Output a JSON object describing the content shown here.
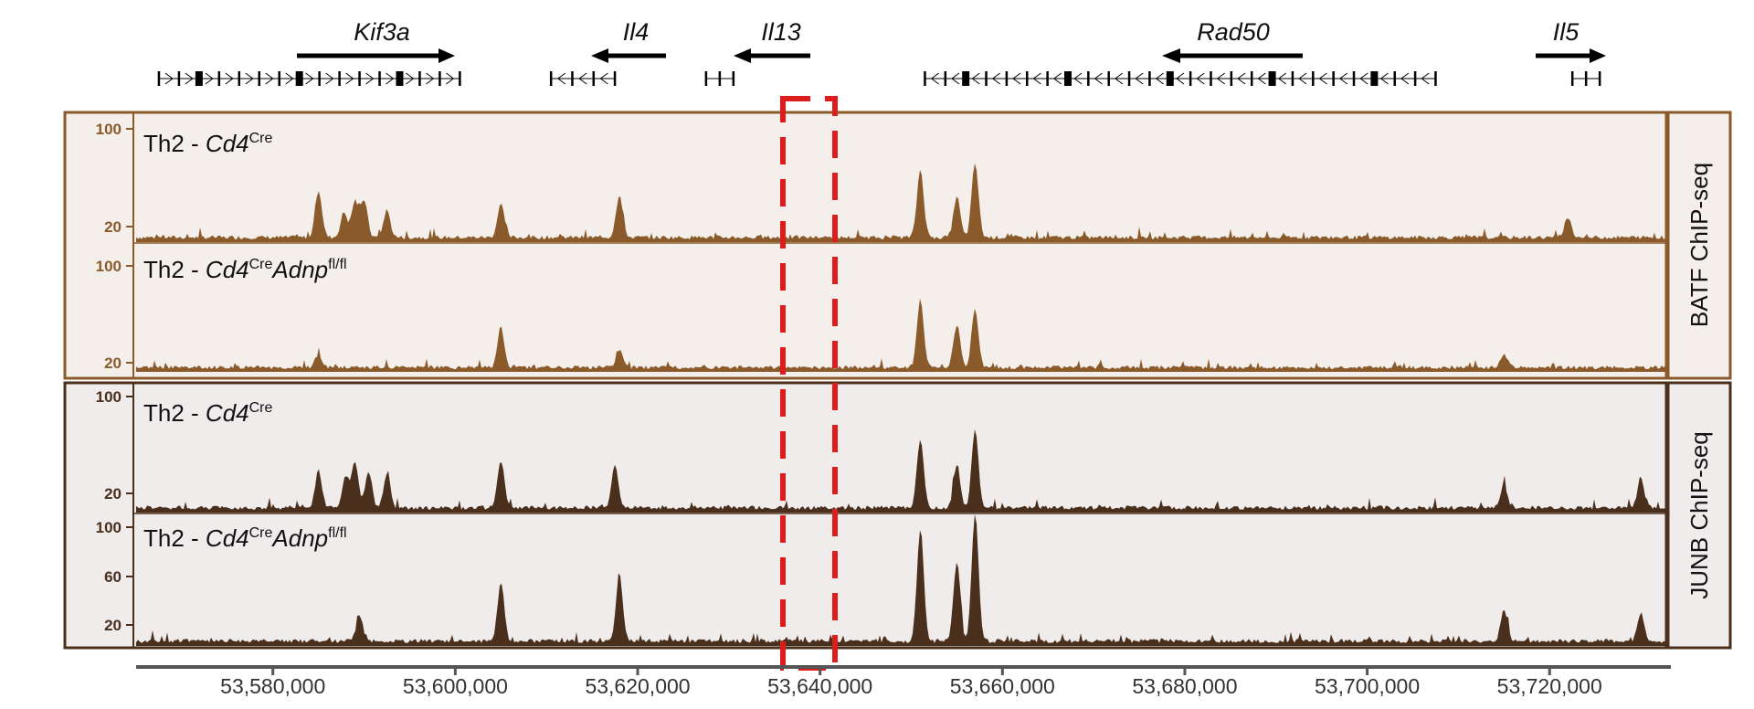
{
  "chart_data": {
    "type": "area",
    "x_range": [
      53565000,
      53733000
    ],
    "x_ticks": [
      53580000,
      53600000,
      53620000,
      53640000,
      53660000,
      53680000,
      53700000,
      53720000
    ],
    "x_tick_labels": [
      "53,580,000",
      "53,600,000",
      "53,620,000",
      "53,640,000",
      "53,660,000",
      "53,680,000",
      "53,700,000",
      "53,720,000"
    ],
    "genes": [
      {
        "name": "Kif3a",
        "strand": "+",
        "start": 53567500,
        "end": 53600500
      },
      {
        "name": "Il4",
        "strand": "-",
        "start": 53610500,
        "end": 53617500
      },
      {
        "name": "Il13",
        "strand": "-",
        "start": 53627500,
        "end": 53630500
      },
      {
        "name": "Rad50",
        "strand": "-",
        "start": 53651500,
        "end": 53707500
      },
      {
        "name": "Il5",
        "strand": "+",
        "start": 53722500,
        "end": 53725500
      }
    ],
    "highlight_region": {
      "start": 53632500,
      "end": 53638500,
      "style": "dashed",
      "color": "#dd1c1c"
    },
    "panels": [
      {
        "label": "BATF ChIP-seq",
        "color": "#8a5a2b",
        "tracks": [
          {
            "condition": "Cd4Cre",
            "y_ticks": [
              20,
              100
            ],
            "peaks": [
              [
                53585000,
                42
              ],
              [
                53587800,
                22
              ],
              [
                53589000,
                32
              ],
              [
                53590000,
                33
              ],
              [
                53592500,
                24
              ],
              [
                53605000,
                30
              ],
              [
                53618000,
                38
              ],
              [
                53651000,
                60
              ],
              [
                53655000,
                36
              ],
              [
                53657000,
                66
              ],
              [
                53722000,
                18
              ]
            ]
          },
          {
            "condition": "Cd4CreAdnpfl/fl",
            "y_ticks": [
              20,
              100
            ],
            "peaks": [
              [
                53585000,
                12
              ],
              [
                53605000,
                38
              ],
              [
                53618000,
                16
              ],
              [
                53651000,
                62
              ],
              [
                53655000,
                40
              ],
              [
                53657000,
                55
              ],
              [
                53715000,
                13
              ]
            ]
          }
        ]
      },
      {
        "label": "JUNB ChIP-seq",
        "color": "#4a2f1c",
        "tracks": [
          {
            "condition": "Cd4Cre",
            "y_ticks": [
              20,
              100
            ],
            "peaks": [
              [
                53585000,
                32
              ],
              [
                53588000,
                27
              ],
              [
                53589000,
                38
              ],
              [
                53590500,
                32
              ],
              [
                53592500,
                28
              ],
              [
                53605000,
                40
              ],
              [
                53617500,
                36
              ],
              [
                53651000,
                60
              ],
              [
                53655000,
                38
              ],
              [
                53657000,
                68
              ],
              [
                53715000,
                20
              ],
              [
                53730000,
                26
              ]
            ]
          },
          {
            "condition": "Cd4CreAdnpfl/fl",
            "y_ticks": [
              20,
              60,
              100
            ],
            "peaks": [
              [
                53589500,
                22
              ],
              [
                53605000,
                50
              ],
              [
                53618000,
                55
              ],
              [
                53651000,
                95
              ],
              [
                53655000,
                68
              ],
              [
                53657000,
                108
              ],
              [
                53715000,
                26
              ],
              [
                53730000,
                24
              ]
            ]
          }
        ]
      }
    ]
  },
  "ui": {
    "genes": {
      "kif3a": "Kif3a",
      "il4": "Il4",
      "il13": "Il13",
      "rad50": "Rad50",
      "il5": "Il5"
    },
    "track_prefix": "Th2 - ",
    "cd4": "Cd4",
    "cre_sup": "Cre",
    "adnp": "Adnp",
    "flfl_sup": "fl/fl",
    "tick_100": "100",
    "tick_60": "60",
    "tick_20": "20",
    "batf_label": "BATF ChIP-seq",
    "junb_label": "JUNB ChIP-seq",
    "xticks": [
      "53,580,000",
      "53,600,000",
      "53,620,000",
      "53,640,000",
      "53,660,000",
      "53,680,000",
      "53,700,000",
      "53,720,000"
    ]
  }
}
